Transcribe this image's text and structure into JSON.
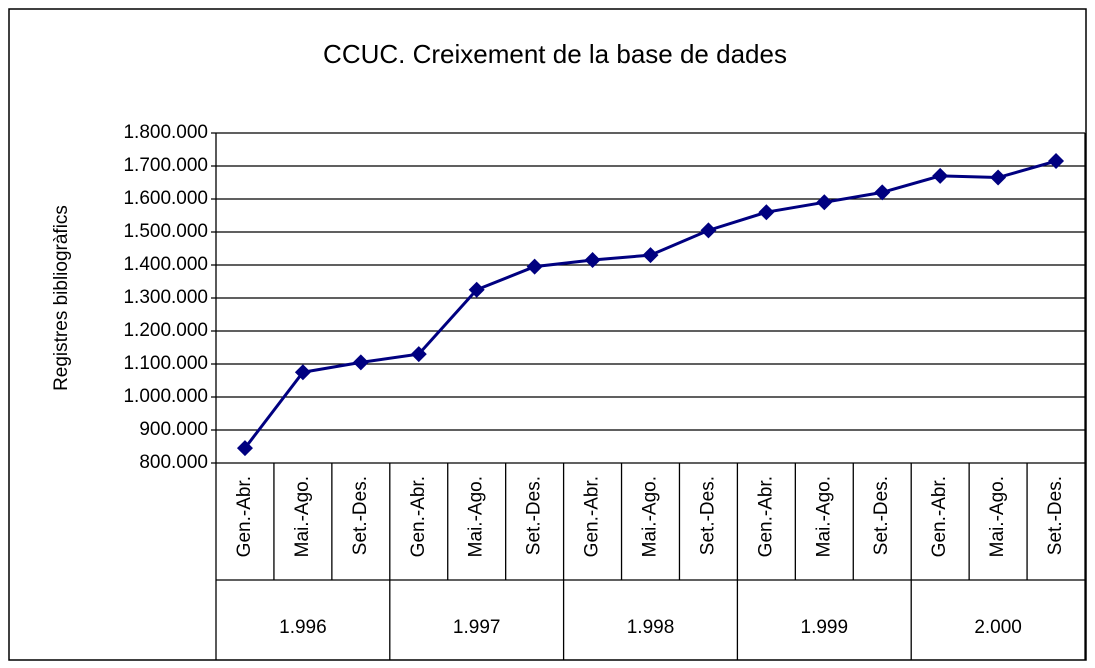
{
  "chart_data": {
    "type": "line",
    "title": "CCUC. Creixement de la base de dades",
    "ylabel": "Registres bibliogràfics",
    "categories": [
      "Gen.-Abr.",
      "Mai.-Ago.",
      "Set.-Des.",
      "Gen.-Abr.",
      "Mai.-Ago.",
      "Set.-Des.",
      "Gen.-Abr.",
      "Mai.-Ago.",
      "Set.-Des.",
      "Gen.-Abr.",
      "Mai.-Ago.",
      "Set.-Des.",
      "Gen.-Abr.",
      "Mai.-Ago.",
      "Set.-Des."
    ],
    "groups": [
      {
        "label": "1.996",
        "span": 3
      },
      {
        "label": "1.997",
        "span": 3
      },
      {
        "label": "1.998",
        "span": 3
      },
      {
        "label": "1.999",
        "span": 3
      },
      {
        "label": "2.000",
        "span": 3
      }
    ],
    "values": [
      845000,
      1075000,
      1105000,
      1130000,
      1325000,
      1395000,
      1415000,
      1430000,
      1505000,
      1560000,
      1590000,
      1620000,
      1670000,
      1665000,
      1715000
    ],
    "color": "#000080",
    "ylim": [
      800000,
      1800000
    ],
    "yticks": [
      {
        "value": 800000,
        "label": "800.000"
      },
      {
        "value": 900000,
        "label": "900.000"
      },
      {
        "value": 1000000,
        "label": "1.000.000"
      },
      {
        "value": 1100000,
        "label": "1.100.000"
      },
      {
        "value": 1200000,
        "label": "1.200.000"
      },
      {
        "value": 1300000,
        "label": "1.300.000"
      },
      {
        "value": 1400000,
        "label": "1.400.000"
      },
      {
        "value": 1500000,
        "label": "1.500.000"
      },
      {
        "value": 1600000,
        "label": "1.600.000"
      },
      {
        "value": 1700000,
        "label": "1.700.000"
      },
      {
        "value": 1800000,
        "label": "1.800.000"
      }
    ],
    "grid": true
  }
}
